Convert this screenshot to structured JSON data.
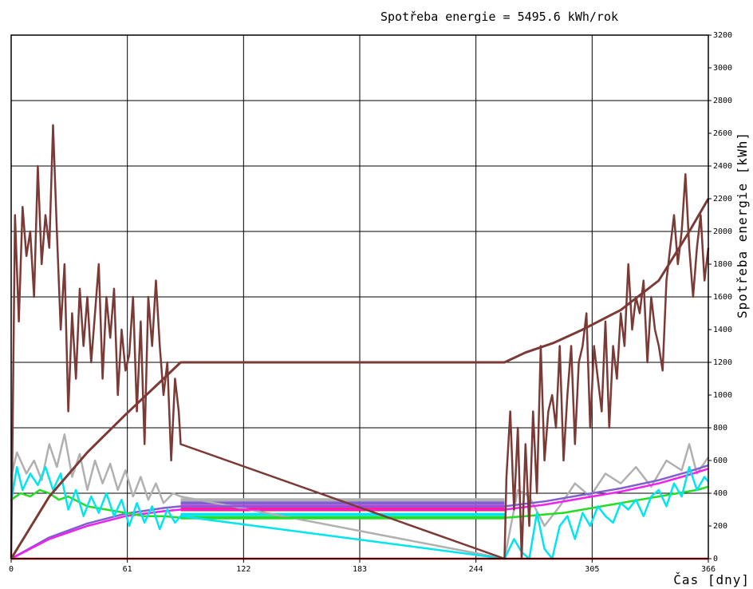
{
  "chart_data": {
    "type": "line",
    "title": "Spotřeba energie = 5495.6 kWh/rok",
    "xlabel": "Čas [dny]",
    "ylabel": "Spotřeba energie [kWh]",
    "xlim": [
      0,
      366
    ],
    "ylim": [
      0,
      3200
    ],
    "xticks": [
      0,
      61,
      122,
      183,
      244,
      305,
      366
    ],
    "yticks": [
      0,
      200,
      400,
      600,
      800,
      1000,
      1200,
      1400,
      1600,
      1800,
      2000,
      2200,
      2400,
      2600,
      2800,
      3000,
      3200
    ],
    "grid": true,
    "legend": "none",
    "colors": {
      "daily": "#7b3a36",
      "cumulative": "#7b3a36",
      "grey": "#b0b0b0",
      "cyan": "#00e5f0",
      "green": "#22dd22",
      "magenta": "#ee22ee",
      "red": "#ff0000",
      "purple": "#8060d0"
    },
    "series": [
      {
        "key": "daily",
        "x": [
          0,
          2,
          4,
          6,
          8,
          10,
          12,
          14,
          16,
          18,
          20,
          22,
          24,
          26,
          28,
          30,
          32,
          34,
          36,
          38,
          40,
          42,
          44,
          46,
          48,
          50,
          52,
          54,
          56,
          58,
          60,
          62,
          64,
          66,
          68,
          70,
          72,
          74,
          76,
          78,
          80,
          82,
          84,
          86,
          88,
          89,
          259,
          260,
          262,
          264,
          266,
          268,
          270,
          272,
          274,
          276,
          278,
          280,
          282,
          284,
          286,
          288,
          290,
          292,
          294,
          296,
          298,
          300,
          302,
          304,
          306,
          308,
          310,
          312,
          314,
          316,
          318,
          320,
          322,
          324,
          326,
          328,
          330,
          332,
          334,
          336,
          338,
          340,
          342,
          344,
          346,
          348,
          350,
          352,
          354,
          356,
          358,
          360,
          362,
          364,
          366
        ],
        "y": [
          0,
          2100,
          1450,
          2150,
          1850,
          2000,
          1600,
          2400,
          1800,
          2100,
          1900,
          2650,
          2000,
          1400,
          1800,
          900,
          1500,
          1100,
          1650,
          1300,
          1600,
          1200,
          1500,
          1800,
          1100,
          1600,
          1350,
          1650,
          1000,
          1400,
          1150,
          1250,
          1600,
          900,
          1450,
          700,
          1600,
          1300,
          1700,
          1300,
          1000,
          1200,
          600,
          1100,
          900,
          700,
          0,
          500,
          900,
          300,
          800,
          0,
          700,
          200,
          900,
          400,
          1300,
          600,
          900,
          1000,
          800,
          1300,
          600,
          1000,
          1300,
          700,
          1200,
          1300,
          1500,
          800,
          1300,
          1100,
          900,
          1450,
          800,
          1300,
          1100,
          1500,
          1300,
          1800,
          1400,
          1600,
          1500,
          1700,
          1200,
          1600,
          1400,
          1300,
          1150,
          1700,
          1900,
          2100,
          1800,
          2000,
          2350,
          1900,
          1600,
          1900,
          2100,
          1700,
          1900
        ]
      },
      {
        "key": "cumulative",
        "x": [
          0,
          20,
          40,
          60,
          80,
          89,
          259,
          270,
          285,
          300,
          320,
          340,
          355,
          366
        ],
        "y": [
          0,
          380,
          650,
          880,
          1100,
          1200,
          1200,
          1260,
          1320,
          1400,
          1520,
          1700,
          1980,
          2200
        ]
      },
      {
        "key": "grey",
        "x": [
          0,
          3,
          8,
          12,
          16,
          20,
          24,
          28,
          32,
          36,
          40,
          44,
          48,
          52,
          56,
          60,
          64,
          68,
          72,
          76,
          80,
          85,
          89,
          259,
          266,
          272,
          280,
          288,
          296,
          304,
          312,
          320,
          328,
          336,
          344,
          352,
          356,
          360,
          366
        ],
        "y": [
          500,
          650,
          520,
          600,
          480,
          700,
          560,
          760,
          500,
          640,
          420,
          600,
          460,
          580,
          420,
          540,
          380,
          500,
          360,
          460,
          340,
          400,
          380,
          0,
          420,
          380,
          200,
          320,
          460,
          380,
          520,
          460,
          560,
          440,
          600,
          540,
          700,
          520,
          620
        ]
      },
      {
        "key": "cyan",
        "x": [
          0,
          3,
          6,
          10,
          14,
          18,
          22,
          26,
          30,
          34,
          38,
          42,
          46,
          50,
          54,
          58,
          62,
          66,
          70,
          74,
          78,
          82,
          86,
          89,
          259,
          264,
          268,
          272,
          276,
          280,
          284,
          288,
          292,
          296,
          300,
          304,
          308,
          312,
          316,
          320,
          324,
          328,
          332,
          336,
          340,
          344,
          348,
          352,
          356,
          360,
          364,
          366
        ],
        "y": [
          350,
          560,
          420,
          520,
          450,
          560,
          420,
          520,
          300,
          420,
          260,
          380,
          280,
          400,
          260,
          360,
          200,
          340,
          220,
          320,
          180,
          300,
          220,
          260,
          0,
          120,
          40,
          0,
          280,
          60,
          0,
          200,
          260,
          120,
          280,
          200,
          320,
          260,
          220,
          340,
          300,
          360,
          260,
          380,
          420,
          320,
          460,
          380,
          560,
          420,
          500,
          470
        ]
      },
      {
        "key": "green",
        "x": [
          0,
          5,
          10,
          15,
          20,
          25,
          30,
          40,
          50,
          60,
          70,
          80,
          89,
          259,
          270,
          280,
          290,
          300,
          310,
          320,
          330,
          340,
          350,
          360,
          366
        ],
        "y": [
          360,
          400,
          380,
          420,
          400,
          360,
          380,
          320,
          300,
          280,
          260,
          260,
          250,
          250,
          260,
          270,
          280,
          300,
          320,
          340,
          360,
          380,
          400,
          420,
          440
        ]
      },
      {
        "key": "magenta",
        "x": [
          0,
          20,
          40,
          60,
          80,
          89,
          259,
          280,
          300,
          320,
          340,
          355,
          366
        ],
        "y": [
          0,
          120,
          200,
          260,
          290,
          300,
          300,
          330,
          370,
          410,
          460,
          510,
          550
        ]
      },
      {
        "key": "purple",
        "x": [
          0,
          20,
          40,
          60,
          80,
          89,
          259,
          280,
          300,
          320,
          340,
          355,
          366
        ],
        "y": [
          0,
          130,
          215,
          275,
          310,
          320,
          320,
          350,
          390,
          430,
          480,
          530,
          570
        ]
      },
      {
        "key": "red",
        "x": [
          0,
          89,
          259,
          366
        ],
        "y": [
          0,
          0,
          0,
          0
        ]
      }
    ],
    "flat_levels": {
      "x": [
        0,
        89
      ],
      "x2": [
        259,
        366
      ],
      "levels": [
        {
          "key": "grey",
          "y": 360
        },
        {
          "key": "purple",
          "y": 340
        },
        {
          "key": "magenta",
          "y": 320
        },
        {
          "key": "red",
          "y": 300
        },
        {
          "key": "cyan",
          "y": 270
        },
        {
          "key": "green",
          "y": 250
        }
      ]
    }
  }
}
